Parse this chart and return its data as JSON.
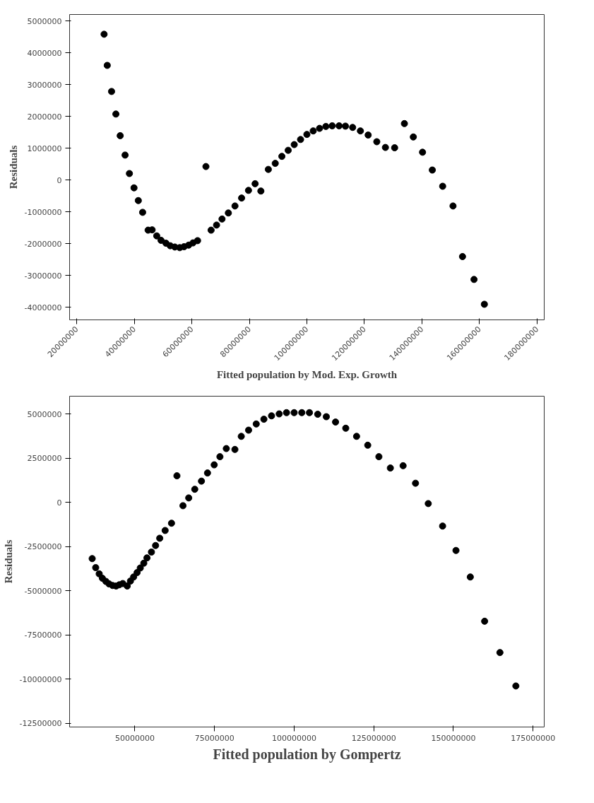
{
  "chart_data": [
    {
      "type": "scatter",
      "xlabel": "Fitted population by Mod. Exp. Growth",
      "ylabel": "Residuals",
      "marker": "circle",
      "grid": false,
      "xlim": [
        17500000,
        182500000
      ],
      "ylim": [
        -4400000,
        5200000
      ],
      "xticks": [
        20000000,
        40000000,
        60000000,
        80000000,
        100000000,
        120000000,
        140000000,
        160000000,
        180000000
      ],
      "yticks": [
        -4000000,
        -3000000,
        -2000000,
        -1000000,
        0,
        1000000,
        2000000,
        3000000,
        4000000,
        5000000
      ],
      "series": [
        {
          "color": "#000000",
          "x": [
            29500000,
            30600000,
            32100000,
            33600000,
            35100000,
            36800000,
            38300000,
            39900000,
            41400000,
            42900000,
            44800000,
            46200000,
            47800000,
            49300000,
            51000000,
            52500000,
            54100000,
            55800000,
            57300000,
            58900000,
            60400000,
            62000000,
            64900000,
            66700000,
            68600000,
            70500000,
            72700000,
            75000000,
            77300000,
            79700000,
            82000000,
            84000000,
            86600000,
            89000000,
            91300000,
            93500000,
            95600000,
            97800000,
            100000000,
            102200000,
            104400000,
            106600000,
            108800000,
            111200000,
            113400000,
            115900000,
            118600000,
            121300000,
            124300000,
            127300000,
            130500000,
            133900000,
            137000000,
            140200000,
            143600000,
            147200000,
            150800000,
            154100000,
            158100000,
            161700000
          ],
          "values": [
            4580000,
            3600000,
            2780000,
            2070000,
            1390000,
            780000,
            200000,
            -250000,
            -650000,
            -1020000,
            -1580000,
            -1570000,
            -1760000,
            -1900000,
            -1990000,
            -2070000,
            -2110000,
            -2130000,
            -2100000,
            -2050000,
            -1980000,
            -1910000,
            420000,
            -1580000,
            -1420000,
            -1230000,
            -1040000,
            -820000,
            -570000,
            -330000,
            -120000,
            -350000,
            330000,
            520000,
            740000,
            930000,
            1110000,
            1270000,
            1430000,
            1540000,
            1620000,
            1680000,
            1700000,
            1700000,
            1690000,
            1650000,
            1540000,
            1410000,
            1200000,
            1020000,
            1010000,
            1770000,
            1350000,
            870000,
            310000,
            -200000,
            -820000,
            -2410000,
            -3130000,
            -3910000
          ]
        }
      ]
    },
    {
      "type": "scatter",
      "xlabel": "Fitted population by Gompertz",
      "ylabel": "Residuals",
      "marker": "circle",
      "grid": false,
      "xlim": [
        29500000,
        178500000
      ],
      "ylim": [
        -12700000,
        6000000
      ],
      "xticks": [
        50000000,
        75000000,
        100000000,
        125000000,
        150000000,
        175000000
      ],
      "yticks": [
        -12500000,
        -10000000,
        -7500000,
        -5000000,
        -2500000,
        0,
        2500000,
        5000000
      ],
      "series": [
        {
          "color": "#000000",
          "x": [
            36600000,
            37700000,
            38800000,
            39800000,
            40900000,
            41900000,
            43000000,
            44100000,
            45100000,
            46200000,
            47600000,
            48600000,
            49600000,
            50700000,
            51700000,
            52800000,
            53800000,
            55200000,
            56500000,
            57800000,
            59500000,
            61500000,
            63200000,
            65100000,
            66900000,
            68800000,
            70900000,
            72800000,
            74900000,
            76700000,
            78700000,
            81400000,
            83400000,
            85700000,
            88100000,
            90500000,
            92900000,
            95300000,
            97600000,
            100000000,
            102400000,
            104800000,
            107400000,
            110100000,
            113000000,
            116200000,
            119600000,
            123100000,
            126600000,
            130200000,
            134200000,
            138100000,
            142100000,
            146600000,
            150800000,
            155300000,
            159800000,
            164600000,
            169600000
          ],
          "values": [
            -3180000,
            -3690000,
            -4040000,
            -4290000,
            -4470000,
            -4610000,
            -4700000,
            -4730000,
            -4660000,
            -4590000,
            -4730000,
            -4450000,
            -4220000,
            -3970000,
            -3710000,
            -3440000,
            -3140000,
            -2810000,
            -2440000,
            -2030000,
            -1590000,
            -1180000,
            1500000,
            -190000,
            250000,
            740000,
            1200000,
            1660000,
            2120000,
            2580000,
            3040000,
            2990000,
            3730000,
            4080000,
            4430000,
            4700000,
            4890000,
            5000000,
            5070000,
            5070000,
            5070000,
            5070000,
            4980000,
            4840000,
            4540000,
            4190000,
            3730000,
            3230000,
            2580000,
            1940000,
            2070000,
            1080000,
            -70000,
            -1340000,
            -2720000,
            -4220000,
            -6720000,
            -8490000,
            -10380000
          ]
        }
      ]
    }
  ]
}
